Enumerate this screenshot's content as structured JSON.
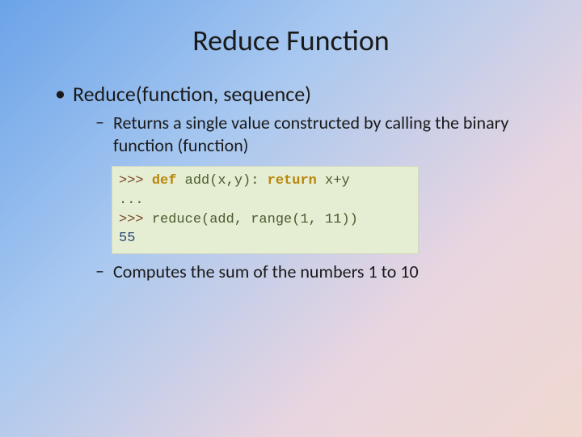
{
  "slide": {
    "title": "Reduce Function",
    "bullet_main": "Reduce(function, sequence)",
    "bullet_sub1": "Returns a single value constructed by calling the binary function (function)",
    "bullet_sub2": "Computes the sum of the numbers 1 to 10",
    "code": {
      "line1_prompt": ">>> ",
      "line1_kw": "def",
      "line1_rest": " add(x,y): ",
      "line1_kw2": "return",
      "line1_rest2": " x+y",
      "line2": "...",
      "line3_prompt": ">>> ",
      "line3_rest": "reduce(add, range(1, 11))",
      "line4": "55"
    },
    "background_gradient": [
      "#6ba3e8",
      "#a8c8f0",
      "#e8d5e0",
      "#f0d8d0"
    ],
    "code_bg": "#e5edd3",
    "title_fontsize": 36,
    "bullet_main_fontsize": 26,
    "bullet_sub_fontsize": 22,
    "code_fontsize": 17
  }
}
